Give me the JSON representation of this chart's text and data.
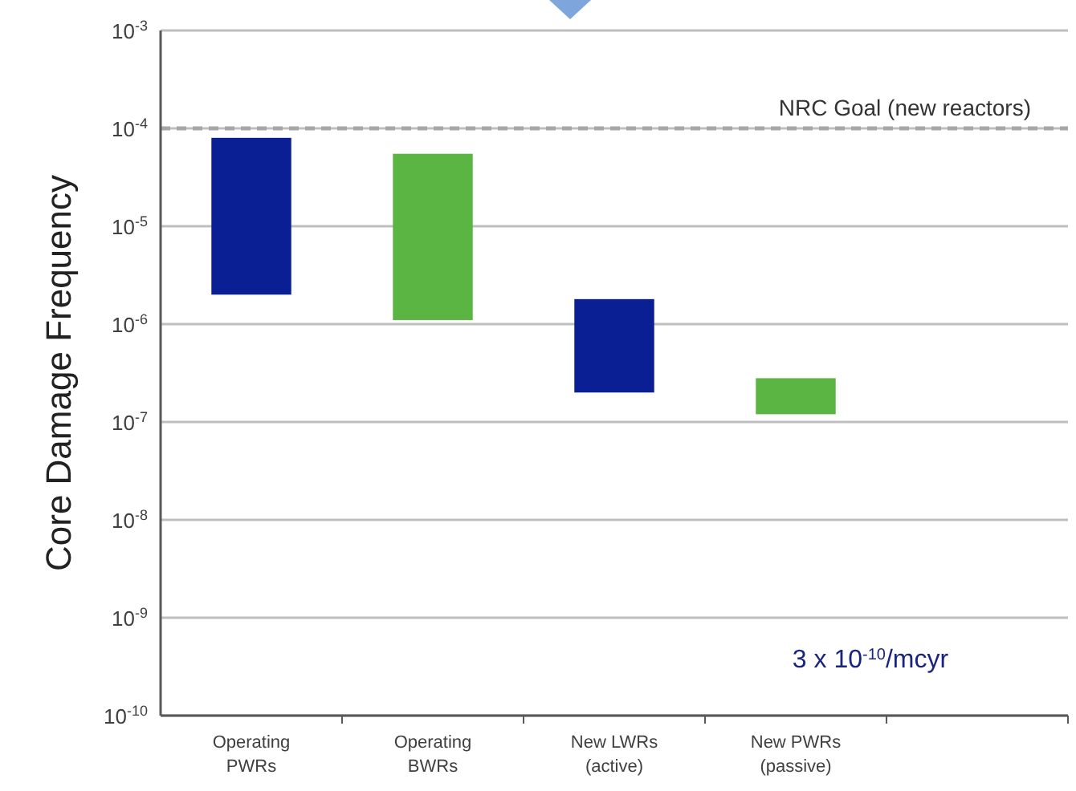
{
  "chart_data": {
    "type": "bar",
    "ylabel": "Core Damage Frequency",
    "log": true,
    "categories": [
      "Operating PWRs",
      "Operating BWRs",
      "New LWRs (active)",
      "New PWRs (passive)",
      null
    ],
    "values": [
      7.8e-05,
      5.39e-05,
      1.6e-06,
      1.6e-07,
      null
    ],
    "base": [
      2e-06,
      1.1e-06,
      2e-07,
      1.2e-07,
      null
    ],
    "colors": [
      "#0b1f94",
      "#5ab543",
      "#0b1f94",
      "#5ab543",
      null
    ],
    "ylim": [
      1e-10,
      0.001
    ],
    "yticks": [
      {
        "value": 1e-10,
        "label": "10$^{-10}$"
      },
      {
        "value": 1e-09,
        "label": "10$^{-9}$"
      },
      {
        "value": 1e-08,
        "label": "10$^{-8}$"
      },
      {
        "value": 1e-07,
        "label": "10$^{-7}$"
      },
      {
        "value": 1e-06,
        "label": "10$^{-6}$"
      },
      {
        "value": 1e-05,
        "label": "10$^{-5}$"
      },
      {
        "value": 0.0001,
        "label": "10$^{-4}$"
      },
      {
        "value": 0.001,
        "label": "10$^{-3}$"
      }
    ],
    "grid": "y",
    "ref_lines": [
      {
        "axis": "y",
        "value": 0.0001,
        "label": "NRC Goal (new reactors)",
        "color": "#a6a6a6",
        "line_style": "dashed"
      }
    ],
    "annotations": [
      "3 x 10$^{-10}$/mcyr"
    ]
  }
}
